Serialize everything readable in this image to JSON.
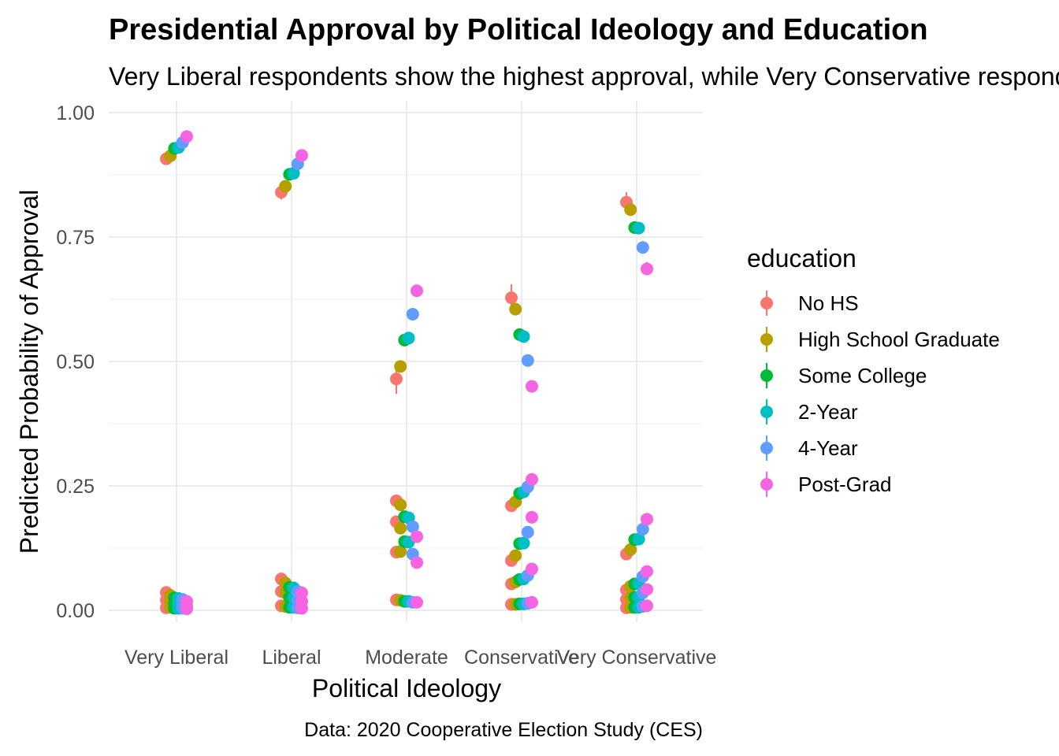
{
  "chart_data": {
    "type": "scatter",
    "title": "Presidential Approval by Political Ideology and Education",
    "subtitle": "Very Liberal respondents show the highest approval, while Very Conservative respondents show the lowest approval",
    "xlabel": "Political Ideology",
    "ylabel": "Predicted Probability of Approval",
    "caption": "Data: 2020 Cooperative Election Study (CES)",
    "categories": [
      "Very Liberal",
      "Liberal",
      "Moderate",
      "Conservative",
      "Very Conservative"
    ],
    "ylim": [
      0,
      1
    ],
    "yticks": [
      "0.00",
      "0.25",
      "0.50",
      "0.75",
      "1.00"
    ],
    "grid": true,
    "legend": {
      "title": "education",
      "position": "right"
    },
    "series": [
      {
        "name": "No HS",
        "color": "#F8766D",
        "points": [
          {
            "x": "Very Liberal",
            "y": 0.907,
            "lo": 0.9,
            "hi": 0.914
          },
          {
            "x": "Very Liberal",
            "y": 0.036
          },
          {
            "x": "Very Liberal",
            "y": 0.021
          },
          {
            "x": "Very Liberal",
            "y": 0.005
          },
          {
            "x": "Liberal",
            "y": 0.84,
            "lo": 0.825,
            "hi": 0.852
          },
          {
            "x": "Liberal",
            "y": 0.063
          },
          {
            "x": "Liberal",
            "y": 0.038
          },
          {
            "x": "Liberal",
            "y": 0.009
          },
          {
            "x": "Moderate",
            "y": 0.465,
            "lo": 0.435,
            "hi": 0.492
          },
          {
            "x": "Moderate",
            "y": 0.22
          },
          {
            "x": "Moderate",
            "y": 0.178
          },
          {
            "x": "Moderate",
            "y": 0.117
          },
          {
            "x": "Moderate",
            "y": 0.021
          },
          {
            "x": "Conservative",
            "y": 0.628,
            "lo": 0.6,
            "hi": 0.655
          },
          {
            "x": "Conservative",
            "y": 0.21
          },
          {
            "x": "Conservative",
            "y": 0.1
          },
          {
            "x": "Conservative",
            "y": 0.053
          },
          {
            "x": "Conservative",
            "y": 0.012
          },
          {
            "x": "Very Conservative",
            "y": 0.82,
            "lo": 0.805,
            "hi": 0.84
          },
          {
            "x": "Very Conservative",
            "y": 0.113
          },
          {
            "x": "Very Conservative",
            "y": 0.041
          },
          {
            "x": "Very Conservative",
            "y": 0.022
          },
          {
            "x": "Very Conservative",
            "y": 0.005
          }
        ]
      },
      {
        "name": "High School Graduate",
        "color": "#B79F00",
        "points": [
          {
            "x": "Very Liberal",
            "y": 0.913
          },
          {
            "x": "Very Liberal",
            "y": 0.03
          },
          {
            "x": "Very Liberal",
            "y": 0.018
          },
          {
            "x": "Very Liberal",
            "y": 0.006
          },
          {
            "x": "Liberal",
            "y": 0.852
          },
          {
            "x": "Liberal",
            "y": 0.055
          },
          {
            "x": "Liberal",
            "y": 0.035
          },
          {
            "x": "Liberal",
            "y": 0.008
          },
          {
            "x": "Moderate",
            "y": 0.49
          },
          {
            "x": "Moderate",
            "y": 0.212
          },
          {
            "x": "Moderate",
            "y": 0.165
          },
          {
            "x": "Moderate",
            "y": 0.118
          },
          {
            "x": "Moderate",
            "y": 0.02
          },
          {
            "x": "Conservative",
            "y": 0.605
          },
          {
            "x": "Conservative",
            "y": 0.218
          },
          {
            "x": "Conservative",
            "y": 0.11
          },
          {
            "x": "Conservative",
            "y": 0.057
          },
          {
            "x": "Conservative",
            "y": 0.012
          },
          {
            "x": "Very Conservative",
            "y": 0.805
          },
          {
            "x": "Very Conservative",
            "y": 0.122
          },
          {
            "x": "Very Conservative",
            "y": 0.048
          },
          {
            "x": "Very Conservative",
            "y": 0.025
          },
          {
            "x": "Very Conservative",
            "y": 0.006
          }
        ]
      },
      {
        "name": "Some College",
        "color": "#00BA38",
        "points": [
          {
            "x": "Very Liberal",
            "y": 0.928
          },
          {
            "x": "Very Liberal",
            "y": 0.025
          },
          {
            "x": "Very Liberal",
            "y": 0.014
          },
          {
            "x": "Very Liberal",
            "y": 0.004
          },
          {
            "x": "Liberal",
            "y": 0.876
          },
          {
            "x": "Liberal",
            "y": 0.046
          },
          {
            "x": "Liberal",
            "y": 0.026
          },
          {
            "x": "Liberal",
            "y": 0.006
          },
          {
            "x": "Moderate",
            "y": 0.543
          },
          {
            "x": "Moderate",
            "y": 0.188
          },
          {
            "x": "Moderate",
            "y": 0.138
          },
          {
            "x": "Moderate",
            "y": 0.018
          },
          {
            "x": "Conservative",
            "y": 0.554
          },
          {
            "x": "Conservative",
            "y": 0.235
          },
          {
            "x": "Conservative",
            "y": 0.134
          },
          {
            "x": "Conservative",
            "y": 0.062
          },
          {
            "x": "Conservative",
            "y": 0.013
          },
          {
            "x": "Very Conservative",
            "y": 0.769
          },
          {
            "x": "Very Conservative",
            "y": 0.142
          },
          {
            "x": "Very Conservative",
            "y": 0.053
          },
          {
            "x": "Very Conservative",
            "y": 0.026
          },
          {
            "x": "Very Conservative",
            "y": 0.006
          }
        ]
      },
      {
        "name": "2-Year",
        "color": "#00BFC4",
        "points": [
          {
            "x": "Very Liberal",
            "y": 0.93
          },
          {
            "x": "Very Liberal",
            "y": 0.024
          },
          {
            "x": "Very Liberal",
            "y": 0.013
          },
          {
            "x": "Very Liberal",
            "y": 0.004
          },
          {
            "x": "Liberal",
            "y": 0.878
          },
          {
            "x": "Liberal",
            "y": 0.045
          },
          {
            "x": "Liberal",
            "y": 0.025
          },
          {
            "x": "Liberal",
            "y": 0.006
          },
          {
            "x": "Moderate",
            "y": 0.547
          },
          {
            "x": "Moderate",
            "y": 0.186
          },
          {
            "x": "Moderate",
            "y": 0.137
          },
          {
            "x": "Moderate",
            "y": 0.018
          },
          {
            "x": "Conservative",
            "y": 0.55
          },
          {
            "x": "Conservative",
            "y": 0.238
          },
          {
            "x": "Conservative",
            "y": 0.135
          },
          {
            "x": "Conservative",
            "y": 0.063
          },
          {
            "x": "Conservative",
            "y": 0.013
          },
          {
            "x": "Very Conservative",
            "y": 0.768
          },
          {
            "x": "Very Conservative",
            "y": 0.143
          },
          {
            "x": "Very Conservative",
            "y": 0.054
          },
          {
            "x": "Very Conservative",
            "y": 0.027
          },
          {
            "x": "Very Conservative",
            "y": 0.006
          }
        ]
      },
      {
        "name": "4-Year",
        "color": "#619CFF",
        "points": [
          {
            "x": "Very Liberal",
            "y": 0.94
          },
          {
            "x": "Very Liberal",
            "y": 0.022
          },
          {
            "x": "Very Liberal",
            "y": 0.011
          },
          {
            "x": "Very Liberal",
            "y": 0.004
          },
          {
            "x": "Liberal",
            "y": 0.897
          },
          {
            "x": "Liberal",
            "y": 0.038
          },
          {
            "x": "Liberal",
            "y": 0.02
          },
          {
            "x": "Liberal",
            "y": 0.005
          },
          {
            "x": "Moderate",
            "y": 0.595
          },
          {
            "x": "Moderate",
            "y": 0.168
          },
          {
            "x": "Moderate",
            "y": 0.113
          },
          {
            "x": "Moderate",
            "y": 0.016
          },
          {
            "x": "Conservative",
            "y": 0.502
          },
          {
            "x": "Conservative",
            "y": 0.248
          },
          {
            "x": "Conservative",
            "y": 0.157
          },
          {
            "x": "Conservative",
            "y": 0.07
          },
          {
            "x": "Conservative",
            "y": 0.014
          },
          {
            "x": "Very Conservative",
            "y": 0.729
          },
          {
            "x": "Very Conservative",
            "y": 0.163
          },
          {
            "x": "Very Conservative",
            "y": 0.068
          },
          {
            "x": "Very Conservative",
            "y": 0.035
          },
          {
            "x": "Very Conservative",
            "y": 0.008
          }
        ]
      },
      {
        "name": "Post-Grad",
        "color": "#F564E3",
        "points": [
          {
            "x": "Very Liberal",
            "y": 0.952
          },
          {
            "x": "Very Liberal",
            "y": 0.018
          },
          {
            "x": "Very Liberal",
            "y": 0.009
          },
          {
            "x": "Very Liberal",
            "y": 0.003
          },
          {
            "x": "Liberal",
            "y": 0.914
          },
          {
            "x": "Liberal",
            "y": 0.035
          },
          {
            "x": "Liberal",
            "y": 0.018
          },
          {
            "x": "Liberal",
            "y": 0.004
          },
          {
            "x": "Moderate",
            "y": 0.642
          },
          {
            "x": "Moderate",
            "y": 0.148
          },
          {
            "x": "Moderate",
            "y": 0.096
          },
          {
            "x": "Moderate",
            "y": 0.016
          },
          {
            "x": "Conservative",
            "y": 0.45
          },
          {
            "x": "Conservative",
            "y": 0.263
          },
          {
            "x": "Conservative",
            "y": 0.187
          },
          {
            "x": "Conservative",
            "y": 0.083
          },
          {
            "x": "Conservative",
            "y": 0.016
          },
          {
            "x": "Very Conservative",
            "y": 0.686,
            "lo": 0.675,
            "hi": 0.7
          },
          {
            "x": "Very Conservative",
            "y": 0.183
          },
          {
            "x": "Very Conservative",
            "y": 0.078
          },
          {
            "x": "Very Conservative",
            "y": 0.042
          },
          {
            "x": "Very Conservative",
            "y": 0.009
          }
        ]
      }
    ]
  }
}
